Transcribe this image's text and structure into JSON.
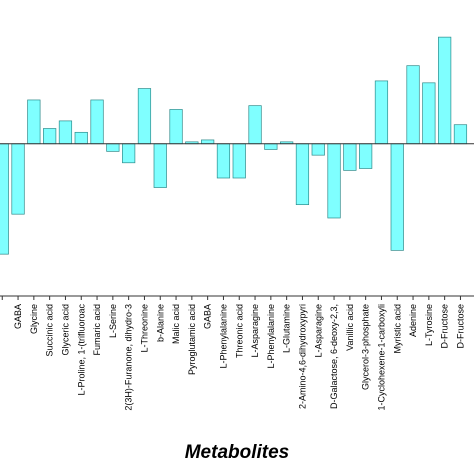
{
  "chart_data": {
    "type": "bar",
    "title": "",
    "xlabel": "Metabolites",
    "ylabel": "",
    "bar_color": "#7FFFFF",
    "bar_edge_color": "#2E8B8B",
    "grid": false,
    "ylim": [
      -7,
      6.5
    ],
    "categories": [
      "",
      "GABA",
      "Glycine",
      "Succinic acid",
      "Glyceric acid",
      "L-Proline, 1-(trifluoroac",
      "Fumaric acid",
      "L-Serine",
      "2(3H)-Furanone, dihydro-3",
      "L-Threonine",
      "b-Alanine",
      "Malic acid",
      "Pyroglutamic acid",
      "GABA",
      "L-Phenylalanine",
      "Threonic acid",
      "L-Asparagine",
      "L-Phenylalanine",
      "L-Glutamine",
      "2-Amino-4,6-dihydroxypyri",
      "L-Asparagine",
      "D-Galactose, 6-deoxy-2,3,",
      "Vanillic acid",
      "Glycerol-3-phosphate",
      "1-Cyclohexene-1-carboxyli",
      "Myristic acid",
      "Adenine",
      "L-Tyrosine",
      "D-Fructose",
      "D-Fructose"
    ],
    "values": [
      -5.8,
      -3.7,
      2.3,
      0.8,
      1.2,
      0.6,
      2.3,
      -0.4,
      -1.0,
      2.9,
      -2.3,
      1.8,
      0.1,
      0.2,
      -1.8,
      -1.8,
      2.0,
      -0.3,
      0.1,
      -3.2,
      -0.6,
      -3.9,
      -1.4,
      -1.3,
      3.3,
      -5.6,
      4.1,
      3.2,
      5.6,
      1.0
    ]
  }
}
